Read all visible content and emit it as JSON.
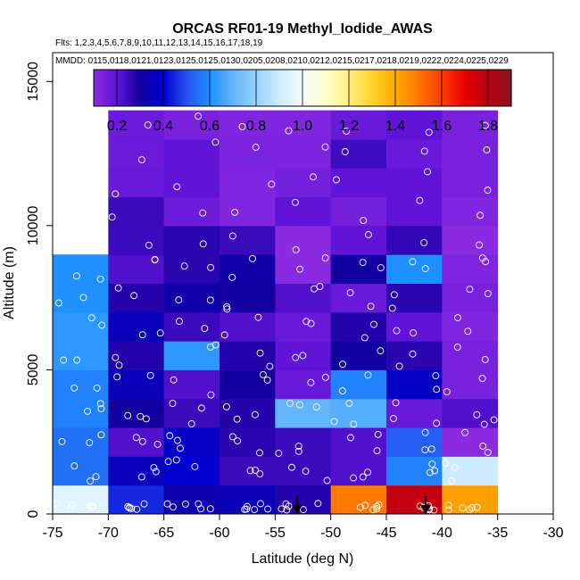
{
  "chart_data": {
    "type": "heatmap",
    "title": "ORCAS RF01-19 Methyl_Iodide_AWAS",
    "flights_label": "Flts: 1,2,3,4,5,6,7,8,9,10,11,12,13,14,15,16,17,18,19",
    "dates_label": "MMDD: 0115,0118,0121,0123,0125,0125,0130,0205,0208,0210,0212,0215,0217,0218,0219,0222,0224,0225,0229",
    "xlabel": "Latitude (deg N)",
    "ylabel": "Altitude (m)",
    "xlim": [
      -75,
      -30
    ],
    "ylim": [
      0,
      16000
    ],
    "x_ticks": [
      -75,
      -70,
      -65,
      -60,
      -55,
      -50,
      -45,
      -40,
      -35,
      -30
    ],
    "x_tick_labels": [
      "-75",
      "-70",
      "-65",
      "-60",
      "-55",
      "-50",
      "-45",
      "-40",
      "-35",
      "-30"
    ],
    "y_ticks": [
      0,
      5000,
      10000,
      15000
    ],
    "y_tick_labels": [
      "0",
      "5000",
      "10000",
      "15000"
    ],
    "colorbar": {
      "range": [
        0.1,
        1.9
      ],
      "ticks": [
        0.2,
        0.4,
        0.6,
        0.8,
        1.0,
        1.2,
        1.4,
        1.6,
        1.8
      ],
      "tick_labels": [
        "0.2",
        "0.4",
        "0.6",
        "0.8",
        "1.0",
        "1.2",
        "1.4",
        "1.6",
        "1.8"
      ]
    },
    "grid": {
      "lat_bin_edges": [
        -75,
        -70,
        -65,
        -60,
        -55,
        -50,
        -45,
        -40,
        -35
      ],
      "alt_bin_size": 1000,
      "columns": [
        {
          "lat_start": -75,
          "alt_start": 0,
          "values": [
            0.95,
            0.55,
            0.55,
            0.58,
            0.58,
            0.62,
            0.62,
            0.6,
            0.6
          ]
        },
        {
          "lat_start": -70,
          "alt_start": 0,
          "values": [
            0.45,
            0.35,
            0.22,
            0.3,
            0.35,
            0.28,
            0.35,
            0.28,
            0.22,
            0.25,
            0.25,
            0.18,
            0.17,
            0.17
          ]
        },
        {
          "lat_start": -65,
          "alt_start": 0,
          "values": [
            0.33,
            0.4,
            0.38,
            0.25,
            0.22,
            0.62,
            0.25,
            0.32,
            0.27,
            0.27,
            0.17,
            0.2,
            0.2,
            0.14
          ]
        },
        {
          "lat_start": -60,
          "alt_start": 0,
          "values": [
            0.35,
            0.25,
            0.27,
            0.28,
            0.3,
            0.28,
            0.22,
            0.3,
            0.32,
            0.25,
            0.12,
            0.12,
            0.13,
            0.12
          ]
        },
        {
          "lat_start": -55,
          "alt_start": 0,
          "values": [
            0.28,
            0.25,
            0.25,
            0.7,
            0.18,
            0.2,
            0.18,
            0.22,
            0.1,
            0.1,
            0.2,
            0.15,
            0.13,
            0.12
          ]
        },
        {
          "lat_start": -50,
          "alt_start": 0,
          "values": [
            1.5,
            0.22,
            0.22,
            0.68,
            0.58,
            0.3,
            0.28,
            0.18,
            0.3,
            0.2,
            0.15,
            0.2,
            0.24,
            0.18
          ]
        },
        {
          "lat_start": -45,
          "alt_start": 0,
          "values": [
            1.78,
            0.58,
            0.52,
            0.18,
            0.38,
            0.27,
            0.2,
            0.27,
            0.6,
            0.26,
            0.2,
            0.2,
            0.18,
            0.2
          ]
        },
        {
          "lat_start": -40,
          "alt_start": 0,
          "values": [
            1.42,
            0.9,
            0.1,
            0.22,
            0.14,
            0.14,
            0.12,
            0.14,
            0.12,
            0.1,
            0.12,
            0.14,
            0.14,
            0.14
          ]
        }
      ]
    }
  }
}
